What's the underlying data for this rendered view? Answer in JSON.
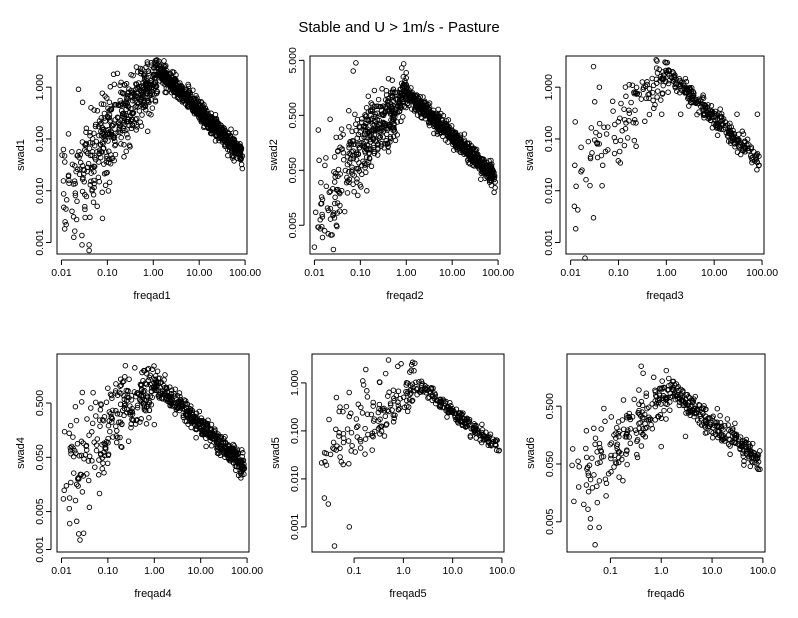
{
  "figure": {
    "title": "Stable and U > 1m/s - Pasture"
  },
  "chart_data": [
    {
      "type": "scatter",
      "xlabel": "freqad1",
      "ylabel": "swad1",
      "xscale": "log",
      "yscale": "log",
      "xlim": [
        0.008,
        110
      ],
      "ylim": [
        0.0006,
        4
      ],
      "xticks": [
        0.01,
        0.1,
        1,
        10,
        100
      ],
      "xtick_labels": [
        "0.01",
        "0.10",
        "1.00",
        "10.00",
        "100.00"
      ],
      "yticks": [
        0.001,
        0.01,
        0.1,
        1
      ],
      "ytick_labels": [
        "0.001",
        "0.010",
        "0.100",
        "1.000"
      ],
      "point_count_shown": 1100,
      "marker": "open circle",
      "trend": {
        "peak_x": 1.3,
        "peak_y": 2.2,
        "low_slope": 1.1,
        "high_slope": -0.9,
        "low_scatter": 1.2,
        "high_scatter": 0.18
      },
      "points": [
        [
          0.012,
          0.0025
        ],
        [
          0.02,
          0.009
        ],
        [
          0.028,
          0.0009
        ],
        [
          0.04,
          0.0007
        ],
        [
          0.04,
          0.0009
        ],
        [
          0.05,
          0.006
        ],
        [
          0.06,
          0.005
        ],
        [
          0.08,
          0.15
        ]
      ],
      "grid": false,
      "legend": "none"
    },
    {
      "type": "scatter",
      "xlabel": "freqad2",
      "ylabel": "swad2",
      "xscale": "log",
      "yscale": "log",
      "xlim": [
        0.008,
        110
      ],
      "ylim": [
        0.0015,
        6
      ],
      "xticks": [
        0.01,
        0.1,
        1,
        10,
        100
      ],
      "xtick_labels": [
        "0.01",
        "0.10",
        "1.00",
        "10.00",
        "100.00"
      ],
      "yticks": [
        0.005,
        0.05,
        0.5,
        5
      ],
      "ytick_labels": [
        "0.005",
        "0.050",
        "0.500",
        "5.000"
      ],
      "point_count_shown": 1100,
      "marker": "open circle",
      "trend": {
        "peak_x": 1.0,
        "peak_y": 1.3,
        "low_slope": 1.0,
        "high_slope": -0.8,
        "low_scatter": 1.0,
        "high_scatter": 0.16
      },
      "points": [
        [
          0.01,
          0.002
        ],
        [
          0.015,
          0.003
        ],
        [
          0.02,
          0.0035
        ],
        [
          0.03,
          0.005
        ],
        [
          0.08,
          4.5
        ],
        [
          0.07,
          3.2
        ]
      ],
      "grid": false,
      "legend": "none"
    },
    {
      "type": "scatter",
      "xlabel": "freqad3",
      "ylabel": "swad3",
      "xscale": "log",
      "yscale": "log",
      "xlim": [
        0.008,
        110
      ],
      "ylim": [
        0.0006,
        4
      ],
      "xticks": [
        0.01,
        0.1,
        1,
        10,
        100
      ],
      "xtick_labels": [
        "0.01",
        "0.10",
        "1.00",
        "10.00",
        "100.00"
      ],
      "yticks": [
        0.001,
        0.01,
        0.1,
        1
      ],
      "ytick_labels": [
        "0.001",
        "0.010",
        "0.100",
        "1.000"
      ],
      "point_count_shown": 380,
      "marker": "open circle",
      "trend": {
        "peak_x": 1.0,
        "peak_y": 2.0,
        "low_slope": 1.0,
        "high_slope": -0.9,
        "low_scatter": 1.0,
        "high_scatter": 0.2
      },
      "points": [
        [
          0.02,
          0.0005
        ],
        [
          0.03,
          0.003
        ],
        [
          0.012,
          0.005
        ],
        [
          0.03,
          2.5
        ],
        [
          0.04,
          1.0
        ],
        [
          0.8,
          0.3
        ],
        [
          2.0,
          0.3
        ],
        [
          30,
          0.3
        ],
        [
          80,
          0.3
        ]
      ],
      "grid": false,
      "legend": "none"
    },
    {
      "type": "scatter",
      "xlabel": "freqad4",
      "ylabel": "swad4",
      "xscale": "log",
      "yscale": "log",
      "xlim": [
        0.008,
        110
      ],
      "ylim": [
        0.0009,
        4
      ],
      "xticks": [
        0.01,
        0.1,
        1,
        10,
        100
      ],
      "xtick_labels": [
        "0.01",
        "0.10",
        "1.00",
        "10.00",
        "100.00"
      ],
      "yticks": [
        0.001,
        0.005,
        0.05,
        0.5
      ],
      "ytick_labels": [
        "0.001",
        "0.005",
        "0.050",
        "0.500"
      ],
      "point_count_shown": 650,
      "marker": "open circle",
      "trend": {
        "peak_x": 1.0,
        "peak_y": 1.2,
        "low_slope": 0.8,
        "high_slope": -0.8,
        "low_scatter": 1.0,
        "high_scatter": 0.18
      },
      "points": [
        [
          0.015,
          0.003
        ],
        [
          0.025,
          0.0015
        ],
        [
          0.03,
          0.002
        ],
        [
          0.02,
          0.008
        ],
        [
          0.04,
          0.006
        ],
        [
          1.0,
          0.2
        ],
        [
          5.0,
          0.4
        ]
      ],
      "grid": false,
      "legend": "none"
    },
    {
      "type": "scatter",
      "xlabel": "freqad5",
      "ylabel": "swad5",
      "xscale": "log",
      "yscale": "log",
      "xlim": [
        0.014,
        110
      ],
      "ylim": [
        0.0003,
        4
      ],
      "xticks": [
        0.1,
        1,
        10,
        100
      ],
      "xtick_labels": [
        "0.1",
        "1.0",
        "10.0",
        "100.0"
      ],
      "yticks": [
        0.001,
        0.01,
        0.1,
        1
      ],
      "ytick_labels": [
        "0.001",
        "0.010",
        "0.100",
        "1.000"
      ],
      "point_count_shown": 330,
      "marker": "open circle",
      "trend": {
        "peak_x": 2.0,
        "peak_y": 0.9,
        "low_slope": 0.6,
        "high_slope": -0.8,
        "low_scatter": 1.0,
        "high_scatter": 0.15
      },
      "points": [
        [
          0.04,
          0.0004
        ],
        [
          0.08,
          0.001
        ],
        [
          0.025,
          0.004
        ],
        [
          0.03,
          0.003
        ],
        [
          0.06,
          0.02
        ],
        [
          0.5,
          3.0
        ],
        [
          0.9,
          2.5
        ]
      ],
      "grid": false,
      "legend": "none"
    },
    {
      "type": "scatter",
      "xlabel": "freqad6",
      "ylabel": "swad6",
      "xscale": "log",
      "yscale": "log",
      "xlim": [
        0.014,
        110
      ],
      "ylim": [
        0.0015,
        4
      ],
      "xticks": [
        0.1,
        1,
        10,
        100
      ],
      "xtick_labels": [
        "0.1",
        "1.0",
        "10.0",
        "100.0"
      ],
      "yticks": [
        0.005,
        0.05,
        0.5
      ],
      "ytick_labels": [
        "0.005",
        "0.050",
        "0.500"
      ],
      "point_count_shown": 430,
      "marker": "open circle",
      "trend": {
        "peak_x": 1.5,
        "peak_y": 1.0,
        "low_slope": 0.8,
        "high_slope": -0.7,
        "low_scatter": 0.9,
        "high_scatter": 0.2
      },
      "points": [
        [
          0.05,
          0.002
        ],
        [
          0.04,
          0.004
        ],
        [
          0.06,
          0.004
        ],
        [
          0.03,
          0.01
        ],
        [
          1.0,
          0.1
        ],
        [
          3.0,
          0.15
        ],
        [
          20,
          0.3
        ]
      ],
      "grid": false,
      "legend": "none"
    }
  ]
}
